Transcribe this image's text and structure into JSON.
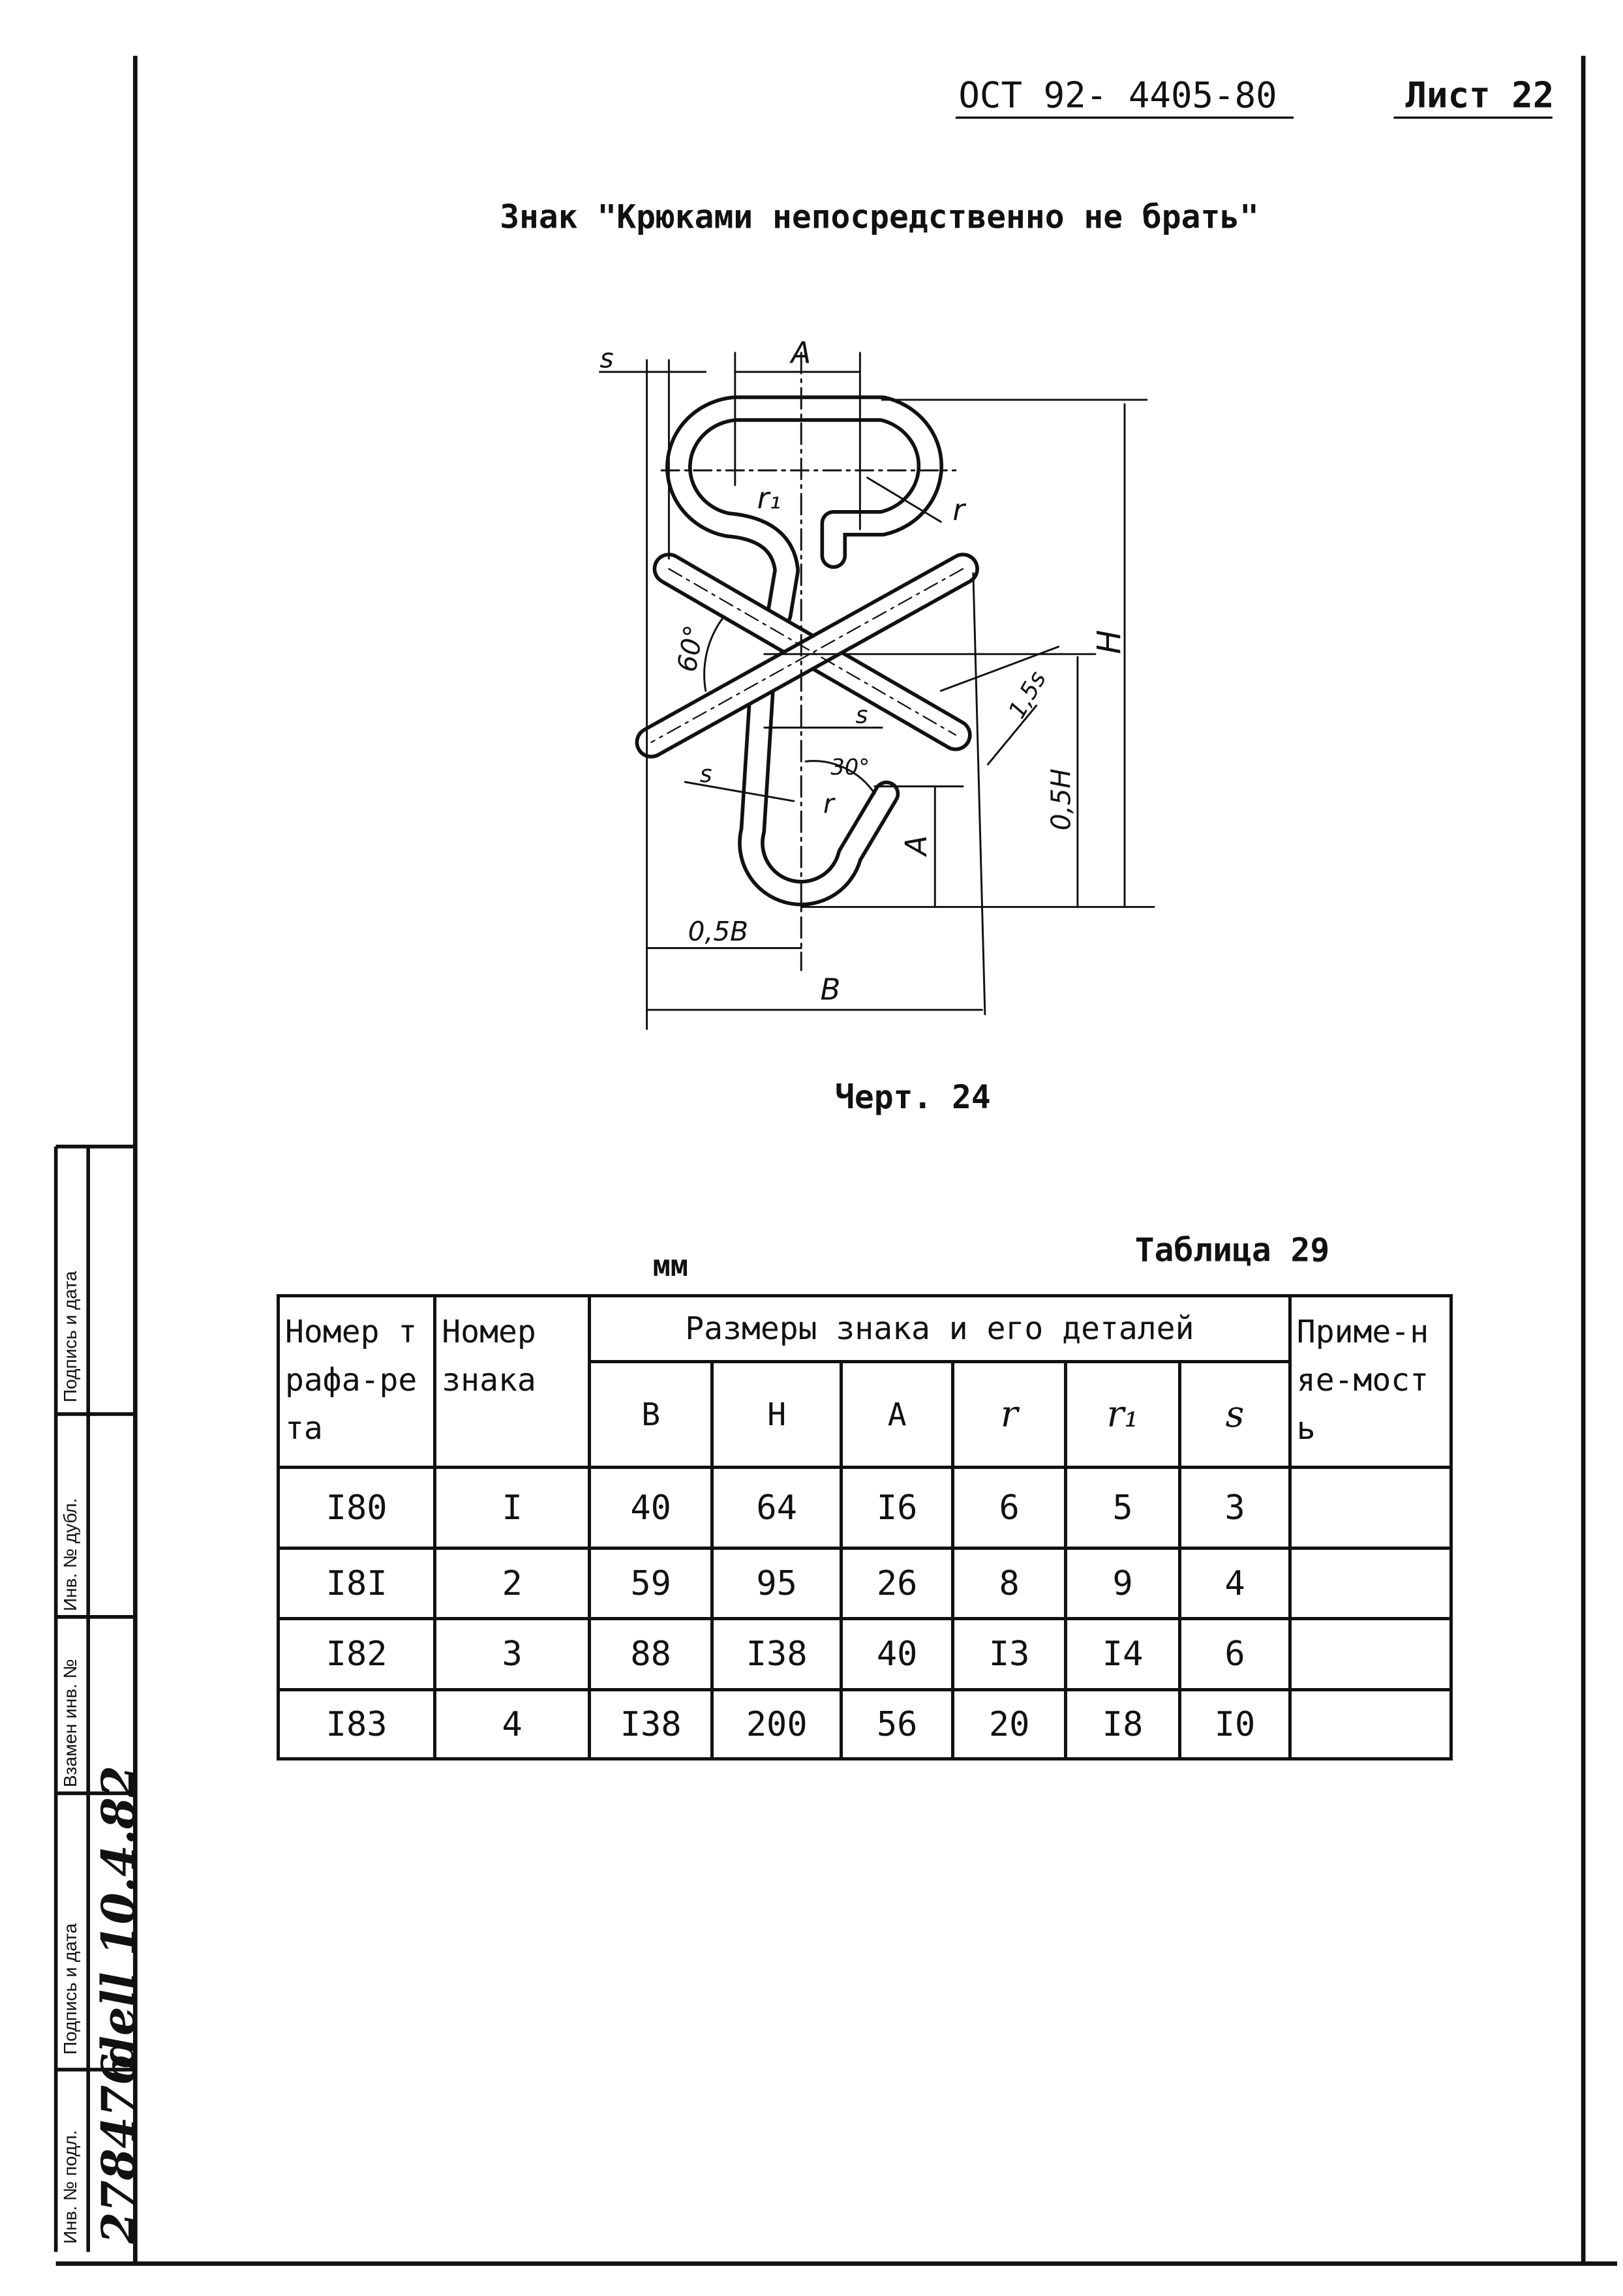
{
  "header": {
    "standard": "ОСТ 92- 4405-80",
    "sheet": "Лист 22"
  },
  "title": "Знак \"Крюками непосредственно не брать\"",
  "drawing": {
    "caption": "Черт. 24",
    "labels": {
      "s_top": "s",
      "a_top": "A",
      "r1": "r₁",
      "r_top": "r",
      "angle60": "60°",
      "h": "H",
      "s15": "1,5s",
      "s_mid": "s",
      "half_h": "0,5H",
      "s_low": "s",
      "angle30": "30°",
      "r_low": "r",
      "a_low": "A",
      "half_b": "0,5B",
      "b": "B"
    }
  },
  "table": {
    "unit": "мм",
    "caption": "Таблица 29",
    "headers": {
      "stencil_no": "Номер трафа-рета",
      "sign_no": "Номер знака",
      "dims_group": "Размеры знака и его деталей",
      "applicability": "Приме-няе-мость",
      "dims": [
        "B",
        "H",
        "A",
        "r",
        "r₁",
        "s"
      ]
    },
    "rows": [
      {
        "stencil": "I80",
        "sign": "I",
        "B": "40",
        "H": "64",
        "A": "I6",
        "r": "6",
        "r1": "5",
        "s": "3",
        "use": ""
      },
      {
        "stencil": "I8I",
        "sign": "2",
        "B": "59",
        "H": "95",
        "A": "26",
        "r": "8",
        "r1": "9",
        "s": "4",
        "use": ""
      },
      {
        "stencil": "I82",
        "sign": "3",
        "B": "88",
        "H": "I38",
        "A": "40",
        "r": "I3",
        "r1": "I4",
        "s": "6",
        "use": ""
      },
      {
        "stencil": "I83",
        "sign": "4",
        "B": "I38",
        "H": "200",
        "A": "56",
        "r": "20",
        "r1": "I8",
        "s": "I0",
        "use": ""
      }
    ]
  },
  "stamp": {
    "fields": [
      "Подпись и дата",
      "Инв. № дубл.",
      "Взамен инв. №",
      "Подпись и дата",
      "Инв. № подл."
    ],
    "signature_date": "dell 10.4.82",
    "inventory_no": "278476"
  }
}
